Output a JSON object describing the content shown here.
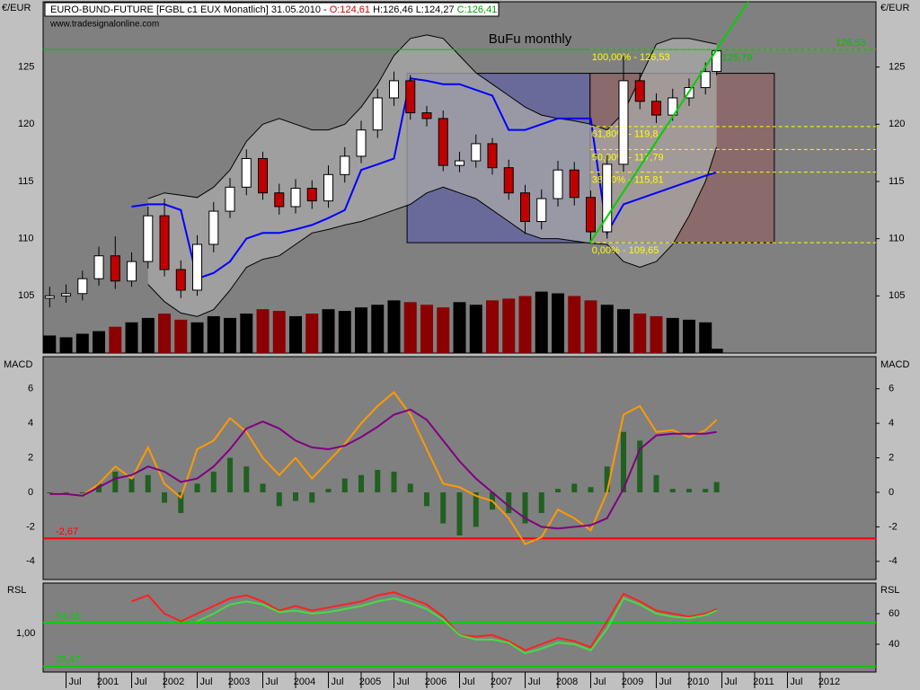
{
  "chart_data": [
    {
      "type": "candlestick",
      "header": [
        {
          "text": "EURO-BUND-FUTURE [FGBL c1 EUX  Monatlich] 31.05.2010 - ",
          "color": "#000000"
        },
        {
          "text": "O:124,61",
          "color": "#d00000"
        },
        {
          "text": " H:126,46 L:124,27 ",
          "color": "#000000"
        },
        {
          "text": "C:126,41",
          "color": "#00a000"
        }
      ],
      "source": "www.tradesignalonline.com",
      "title": "BuFu monthly",
      "title_color": "#ffff00",
      "y_unit": "€/EUR",
      "xlim": [
        2000.15,
        2012.85
      ],
      "xticks": [
        {
          "value": 2000.5,
          "label": "Jul"
        },
        2001,
        {
          "value": 2001.5,
          "label": "Jul"
        },
        2002,
        {
          "value": 2002.5,
          "label": "Jul"
        },
        2003,
        {
          "value": 2003.5,
          "label": "Jul"
        },
        2004,
        {
          "value": 2004.5,
          "label": "Jul"
        },
        2005,
        {
          "value": 2005.5,
          "label": "Jul"
        },
        2006,
        {
          "value": 2006.5,
          "label": "Jul"
        },
        2007,
        {
          "value": 2007.5,
          "label": "Jul"
        },
        2008,
        {
          "value": 2008.5,
          "label": "Jul"
        },
        2009,
        {
          "value": 2009.5,
          "label": "Jul"
        },
        2010,
        {
          "value": 2010.5,
          "label": "Jul"
        },
        2011,
        {
          "value": 2011.5,
          "label": "Jul"
        },
        2012
      ],
      "ylim": [
        100,
        130.7
      ],
      "yticks": [
        105,
        110,
        115,
        120,
        125
      ],
      "x": [
        2000.25,
        2000.5,
        2000.75,
        2001,
        2001.25,
        2001.5,
        2001.75,
        2002,
        2002.25,
        2002.5,
        2002.75,
        2003,
        2003.25,
        2003.5,
        2003.75,
        2004,
        2004.25,
        2004.5,
        2004.75,
        2005,
        2005.25,
        2005.5,
        2005.75,
        2006,
        2006.25,
        2006.5,
        2006.75,
        2007,
        2007.25,
        2007.5,
        2007.75,
        2008,
        2008.25,
        2008.5,
        2008.75,
        2009,
        2009.25,
        2009.5,
        2009.75,
        2010,
        2010.25,
        2010.42
      ],
      "open": [
        104.8,
        105,
        105.2,
        106.5,
        108.5,
        106.3,
        108,
        112,
        107.3,
        105.5,
        109.5,
        112.4,
        114.5,
        117,
        114,
        112.8,
        114.4,
        113.3,
        115.6,
        117.2,
        119.5,
        122.3,
        123.8,
        121,
        120.5,
        116.4,
        116.8,
        118.3,
        116.2,
        114,
        111.5,
        113.5,
        116,
        113.6,
        110.6,
        116.5,
        123.8,
        122,
        120.8,
        122.3,
        123.2,
        124.61
      ],
      "high": [
        105.8,
        106,
        107.2,
        109.3,
        110.2,
        108.8,
        112.8,
        113.5,
        108.1,
        110.3,
        113.2,
        115.3,
        117.8,
        117.6,
        114.8,
        115.2,
        115.1,
        116.4,
        118,
        120.3,
        123.1,
        124.6,
        124.3,
        121.6,
        121.2,
        117.6,
        119.1,
        118.8,
        116.9,
        114.7,
        114.3,
        116.8,
        116.7,
        114.2,
        117.3,
        126,
        124.5,
        122.7,
        123.1,
        124,
        125.4,
        126.46
      ],
      "low": [
        104,
        104.4,
        104.6,
        105.9,
        105.6,
        105.8,
        107.4,
        106.7,
        104.8,
        105,
        108.8,
        111.8,
        113.8,
        113.4,
        112.1,
        112.2,
        112.6,
        112.7,
        114.9,
        116.6,
        118.8,
        121.6,
        120.4,
        119.8,
        115.9,
        115.8,
        116.2,
        115.6,
        113.4,
        110.4,
        110.8,
        112.8,
        112.9,
        109.65,
        110,
        115.8,
        121.3,
        120.1,
        120.3,
        121.6,
        122.6,
        124.27
      ],
      "close": [
        105,
        105.2,
        106.5,
        108.5,
        106.3,
        108,
        112,
        107.3,
        105.5,
        109.5,
        112.4,
        114.5,
        117,
        114,
        112.8,
        114.4,
        113.3,
        115.6,
        117.2,
        119.5,
        122.3,
        123.8,
        121,
        120.5,
        116.4,
        116.8,
        118.3,
        116.2,
        114,
        111.5,
        113.5,
        116,
        113.6,
        110.6,
        116.5,
        123.8,
        122,
        120.8,
        122.3,
        123.2,
        124.6,
        126.41
      ],
      "up_color": "#ffffff",
      "down_color": "#c00000",
      "volume": [
        20,
        18,
        22,
        25,
        30,
        35,
        40,
        45,
        38,
        35,
        42,
        40,
        45,
        50,
        48,
        42,
        45,
        50,
        48,
        52,
        55,
        60,
        58,
        55,
        52,
        58,
        55,
        60,
        62,
        65,
        70,
        68,
        65,
        60,
        55,
        50,
        45,
        42,
        40,
        38,
        35,
        5
      ],
      "volume_lim": [
        0,
        400
      ],
      "volume_up_color": "#000000",
      "volume_down_color": "#8b0000",
      "band_upper": [
        null,
        null,
        null,
        null,
        null,
        null,
        113.5,
        114,
        113.8,
        113.6,
        114.5,
        116,
        118.5,
        120,
        120.5,
        120,
        119.5,
        119.5,
        120,
        121.5,
        123.5,
        126,
        127.5,
        127.8,
        127.5,
        126,
        124.5,
        123.5,
        122.5,
        121.5,
        120.8,
        120.5,
        120.3,
        120,
        119.5,
        121,
        124,
        127,
        127.5,
        127.5,
        127.2,
        127
      ],
      "band_lower": [
        null,
        null,
        null,
        null,
        null,
        null,
        106,
        104.5,
        103.5,
        103.2,
        103.8,
        105.5,
        107.5,
        108.2,
        108.5,
        109.5,
        110.5,
        110.8,
        111.2,
        111.5,
        112,
        112.5,
        113,
        114,
        114.5,
        114,
        113.5,
        112.5,
        111.5,
        110.5,
        110,
        110,
        109.8,
        109.6,
        109.5,
        108,
        107.5,
        108,
        109.5,
        112,
        115,
        118
      ],
      "band_color": "#a9a9a9",
      "stop_line": [
        null,
        null,
        null,
        null,
        null,
        112.8,
        113,
        113,
        112.5,
        106.5,
        107,
        108,
        110,
        110.5,
        110.5,
        110.8,
        111.2,
        111.8,
        112.5,
        116,
        116.5,
        117,
        124,
        123.8,
        123.5,
        123.5,
        123,
        122.5,
        119.5,
        119.5,
        120,
        120.5,
        120.5,
        120.5,
        110.5,
        113,
        113.5,
        114,
        114.5,
        115,
        115.5,
        115.8
      ],
      "stop_color": "#0000ff",
      "hline": {
        "value": 126.53,
        "label": "126,53",
        "color": "#00c000"
      },
      "last_marker": {
        "value": 125.79,
        "label": "125,79",
        "color": "#00c000"
      },
      "fib": [
        {
          "value": 126.53,
          "label": "100,00% - 126,53"
        },
        {
          "value": 119.8,
          "label": "61,80% - 119,8"
        },
        {
          "value": 117.79,
          "label": "50,00% - 117,79"
        },
        {
          "value": 115.81,
          "label": "38,20% - 115,81"
        },
        {
          "value": 109.65,
          "label": "0,00% - 109,65"
        }
      ],
      "fib_color": "#ffff00",
      "boxes": [
        {
          "x": [
            2005.7,
            2008.49
          ],
          "y": [
            109.65,
            124.45
          ],
          "color": "#6a6a9a"
        },
        {
          "x": [
            2008.49,
            2011.3
          ],
          "y": [
            109.65,
            124.45
          ],
          "color": "#8a6a6a"
        }
      ],
      "trendline": {
        "x": [
          2008.49,
          2010.9
        ],
        "y": [
          109.65,
          130.7
        ],
        "color": "#00d000"
      }
    },
    {
      "type": "line",
      "label": "MACD",
      "x": [
        2000.25,
        2000.5,
        2000.75,
        2001,
        2001.25,
        2001.5,
        2001.75,
        2002,
        2002.25,
        2002.5,
        2002.75,
        2003,
        2003.25,
        2003.5,
        2003.75,
        2004,
        2004.25,
        2004.5,
        2004.75,
        2005,
        2005.25,
        2005.5,
        2005.75,
        2006,
        2006.25,
        2006.5,
        2006.75,
        2007,
        2007.25,
        2007.5,
        2007.75,
        2008,
        2008.25,
        2008.5,
        2008.75,
        2009,
        2009.25,
        2009.5,
        2009.75,
        2010,
        2010.25,
        2010.42
      ],
      "ylim": [
        -5.05,
        7.86
      ],
      "yticks": [
        -4,
        -2,
        0,
        2,
        4,
        6
      ],
      "histogram": {
        "color": "#206020",
        "values": [
          0,
          -0.1,
          0,
          0.5,
          1.2,
          0.8,
          1.0,
          -0.6,
          -1.2,
          0.5,
          1.2,
          2.0,
          1.5,
          0.5,
          -0.8,
          -0.5,
          -0.6,
          0.2,
          0.8,
          1.0,
          1.3,
          1.2,
          0.5,
          -0.8,
          -1.8,
          -2.5,
          -2.0,
          -1.0,
          -1.2,
          -1.8,
          -1.2,
          0.2,
          0.5,
          0.3,
          1.5,
          3.5,
          3.0,
          1.0,
          0.2,
          0.2,
          0.2,
          0.6
        ]
      },
      "series": [
        {
          "color": "#ff9900",
          "values": [
            -0.1,
            -0.1,
            -0.2,
            0.5,
            1.5,
            0.8,
            2.6,
            0.5,
            -0.3,
            2.5,
            3.0,
            4.3,
            3.5,
            2.0,
            1.0,
            2.0,
            0.8,
            1.8,
            2.8,
            4.0,
            5.0,
            5.8,
            4.5,
            2.5,
            0.5,
            0.3,
            -0.2,
            -0.5,
            -1.5,
            -3.0,
            -2.6,
            -1.0,
            -1.5,
            -2.2,
            0.0,
            4.5,
            5.0,
            3.5,
            3.6,
            3.2,
            3.6,
            4.2
          ]
        },
        {
          "color": "#800080",
          "values": [
            -0.1,
            -0.1,
            -0.2,
            0.3,
            0.8,
            1.0,
            1.5,
            1.2,
            0.6,
            0.8,
            1.5,
            2.5,
            3.7,
            4.1,
            3.7,
            3.0,
            2.6,
            2.5,
            2.7,
            3.2,
            3.8,
            4.5,
            4.8,
            4.2,
            3.0,
            1.8,
            0.8,
            0.0,
            -0.8,
            -1.5,
            -2.0,
            -2.1,
            -2.0,
            -1.9,
            -1.5,
            0.2,
            2.5,
            3.3,
            3.4,
            3.4,
            3.4,
            3.5
          ]
        }
      ],
      "ref_lines": [
        {
          "value": -2.67,
          "label": "-2,67",
          "color": "#ff0000"
        }
      ]
    },
    {
      "type": "line",
      "label": "RSL",
      "left_label": "1,00",
      "x": [
        2000.25,
        2000.5,
        2000.75,
        2001,
        2001.25,
        2001.5,
        2001.75,
        2002,
        2002.25,
        2002.5,
        2002.75,
        2003,
        2003.25,
        2003.5,
        2003.75,
        2004,
        2004.25,
        2004.5,
        2004.75,
        2005,
        2005.25,
        2005.5,
        2005.75,
        2006,
        2006.25,
        2006.5,
        2006.75,
        2007,
        2007.25,
        2007.5,
        2007.75,
        2008,
        2008.25,
        2008.5,
        2008.75,
        2009,
        2009.25,
        2009.5,
        2009.75,
        2010,
        2010.25,
        2010.42
      ],
      "ylim": [
        21.8,
        80
      ],
      "yticks": [
        40,
        60
      ],
      "series": [
        {
          "color": "#ff2020",
          "values": [
            null,
            null,
            null,
            null,
            null,
            68,
            72,
            60,
            55,
            60,
            65,
            70,
            72,
            68,
            62,
            65,
            62,
            64,
            66,
            68,
            72,
            74,
            70,
            66,
            58,
            46,
            45,
            46,
            42,
            36,
            40,
            44,
            42,
            38,
            55,
            73,
            68,
            62,
            60,
            58,
            60,
            63
          ]
        },
        {
          "color": "#40e040",
          "values": [
            null,
            null,
            null,
            null,
            null,
            null,
            null,
            null,
            null,
            55,
            60,
            66,
            68,
            66,
            61,
            62,
            60,
            61,
            63,
            65,
            68,
            70,
            67,
            63,
            56,
            46,
            43,
            43,
            41,
            34,
            37,
            41,
            40,
            36,
            50,
            70,
            66,
            60,
            58,
            57,
            59,
            62
          ]
        }
      ],
      "ref_lines": [
        {
          "value": 54.16,
          "label": "54,16",
          "color": "#00d000"
        },
        {
          "value": 25.47,
          "label": "25,47",
          "color": "#00d000"
        }
      ]
    }
  ]
}
